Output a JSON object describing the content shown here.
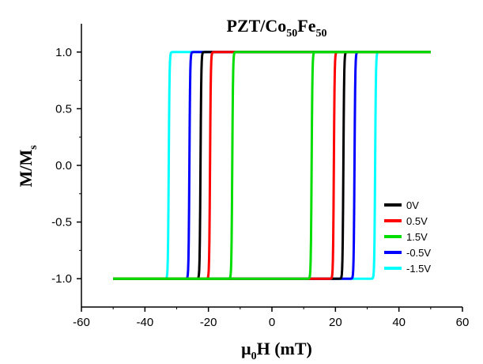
{
  "chart_data": {
    "type": "line",
    "title": {
      "base1": "PZT/Co",
      "sub1": "50",
      "base2": "Fe",
      "sub2": "50"
    },
    "xlabel": {
      "prefix": "μ",
      "sub": "0",
      "rest": "H (mT)"
    },
    "ylabel": {
      "base": "M/M",
      "sub": "s"
    },
    "xlim": [
      -60,
      60
    ],
    "ylim": [
      -1.25,
      1.25
    ],
    "xticks": [
      -60,
      -40,
      -20,
      0,
      20,
      40,
      60
    ],
    "yticks": [
      -1.0,
      -0.5,
      0.0,
      0.5,
      1.0
    ],
    "ytick_labels": [
      "-1.0",
      "-0.5",
      "0.0",
      "0.5",
      "1.0"
    ],
    "xtick_labels": [
      "-60",
      "-40",
      "-20",
      "0",
      "20",
      "40",
      "60"
    ],
    "field_range": [
      -50,
      50
    ],
    "grid": false,
    "legend_position": "right-lower",
    "series": [
      {
        "name": "0V",
        "color": "#000000",
        "coercive_field": 22.5
      },
      {
        "name": "0.5V",
        "color": "#ff0000",
        "coercive_field": 19.5
      },
      {
        "name": "1.5V",
        "color": "#00dd00",
        "coercive_field": 12.5
      },
      {
        "name": "-0.5V",
        "color": "#0000ff",
        "coercive_field": 26.0
      },
      {
        "name": "-1.5V",
        "color": "#00ffff",
        "coercive_field": 32.5
      }
    ]
  }
}
